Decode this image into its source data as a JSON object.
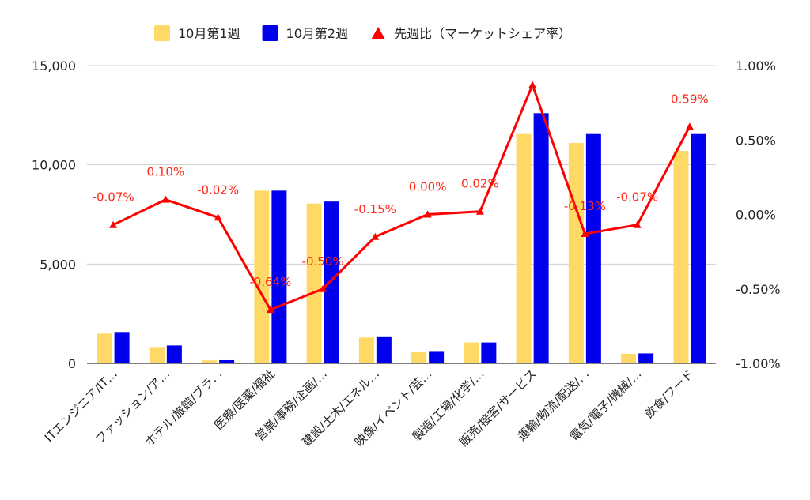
{
  "chart_data": {
    "type": "bar",
    "categories": [
      "ITエンジニア/IT…",
      "ファッション/ア…",
      "ホテル/旅館/ブラ…",
      "医療/医薬/福祉",
      "営業/事務/企画/…",
      "建設/土木/エネル…",
      "映像/イベント/芸…",
      "製造/工場/化学/…",
      "販売/接客/サービス",
      "運輸/物流/配送/…",
      "電気/電子/機械/…",
      "飲食/フード"
    ],
    "series": [
      {
        "name": "10月第1週",
        "type": "bar",
        "axis": "left",
        "color": "#FFD966",
        "values": [
          1500,
          820,
          150,
          8700,
          8050,
          1300,
          580,
          1050,
          11550,
          11100,
          480,
          10700
        ]
      },
      {
        "name": "10月第2週",
        "type": "bar",
        "axis": "left",
        "color": "#0000EE",
        "values": [
          1580,
          900,
          160,
          8700,
          8150,
          1320,
          620,
          1050,
          12600,
          11550,
          500,
          11550
        ]
      },
      {
        "name": "先週比（マーケットシェア率）",
        "type": "line",
        "axis": "right",
        "color": "#FF0000",
        "values": [
          -0.07,
          0.1,
          -0.02,
          -0.64,
          -0.5,
          -0.15,
          0.0,
          0.02,
          0.87,
          -0.13,
          -0.07,
          0.59
        ],
        "labels": [
          "-0.07%",
          "0.10%",
          "-0.02%",
          "-0.64%",
          "-0.50%",
          "-0.15%",
          "0.00%",
          "0.02%",
          "",
          "-0.13%",
          "-0.07%",
          "0.59%"
        ]
      }
    ],
    "y_left": {
      "ylim": [
        0,
        15000
      ],
      "ticks": [
        0,
        5000,
        10000,
        15000
      ],
      "tick_labels": [
        "0",
        "5,000",
        "10,000",
        "15,000"
      ]
    },
    "y_right": {
      "ylim": [
        -1.0,
        1.0
      ],
      "ticks": [
        -1.0,
        -0.5,
        0.0,
        0.5,
        1.0
      ],
      "tick_labels": [
        "-1.00%",
        "-0.50%",
        "0.00%",
        "0.50%",
        "1.00%"
      ]
    },
    "grid": true,
    "legend_position": "top"
  }
}
